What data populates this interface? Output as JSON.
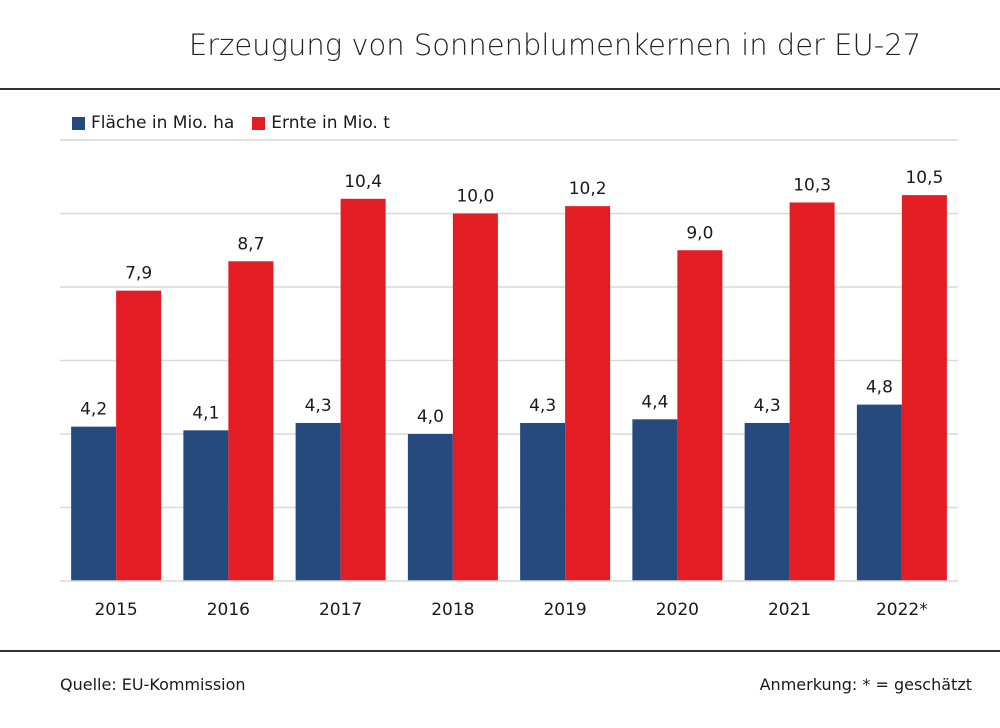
{
  "title": "Erzeugung von Sonnenblumenkernen in der EU-27",
  "footer": {
    "source": "Quelle:  EU-Kommission",
    "note": "Anmerkung: * = geschätzt"
  },
  "chart_data": {
    "type": "bar",
    "categories": [
      "2015",
      "2016",
      "2017",
      "2018",
      "2019",
      "2020",
      "2021",
      "2022*"
    ],
    "series": [
      {
        "name": "Fläche in Mio. ha",
        "color": "#264a7e",
        "values": [
          4.2,
          4.1,
          4.3,
          4.0,
          4.3,
          4.4,
          4.3,
          4.8
        ],
        "labels": [
          "4,2",
          "4,1",
          "4,3",
          "4,0",
          "4,3",
          "4,4",
          "4,3",
          "4,8"
        ]
      },
      {
        "name": "Ernte in Mio. t",
        "color": "#e31d23",
        "values": [
          7.9,
          8.7,
          10.4,
          10.0,
          10.2,
          9.0,
          10.3,
          10.5
        ],
        "labels": [
          "7,9",
          "8,7",
          "10,4",
          "10,0",
          "10,2",
          "9,0",
          "10,3",
          "10,5"
        ]
      }
    ],
    "ylim": [
      0,
      12
    ],
    "grid": true,
    "gridlines": [
      2,
      4,
      6,
      8,
      10,
      12
    ],
    "y_tick_labels_shown": false,
    "legend": "top-left"
  }
}
